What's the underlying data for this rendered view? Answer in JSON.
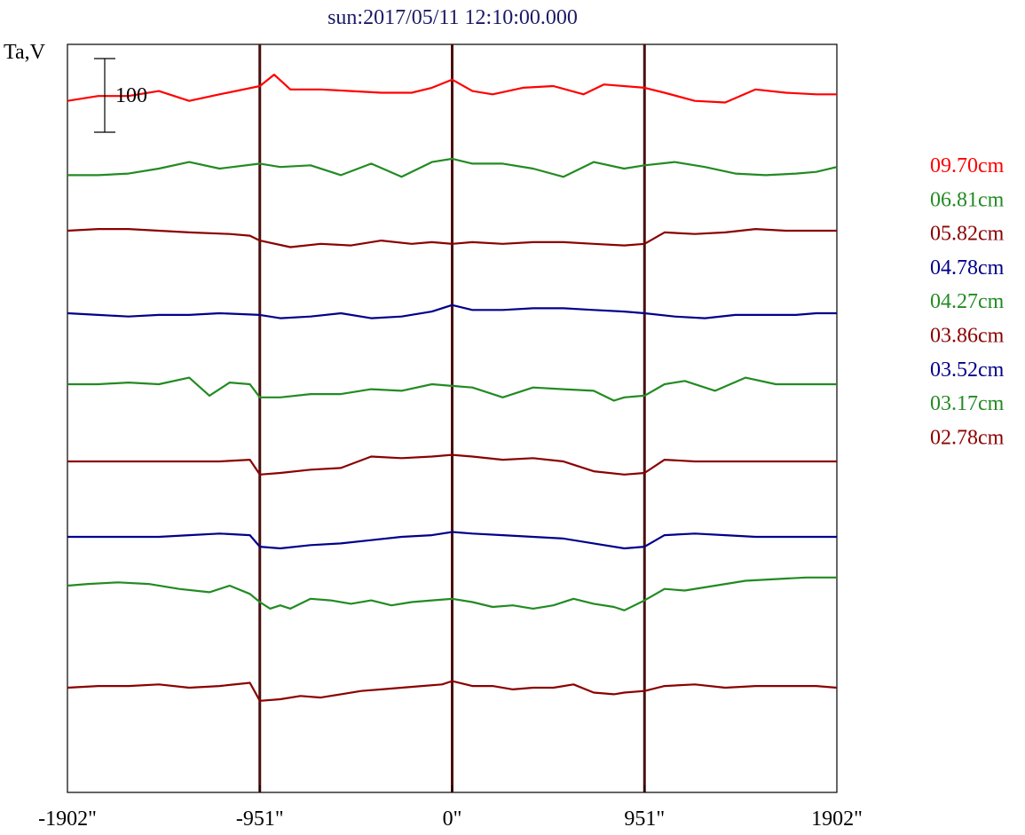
{
  "chart_data": {
    "type": "line",
    "title": "sun:2017/05/11 12:10:00.000",
    "ylabel": "Ta,V",
    "xlabel": "",
    "xlim": [
      -1902,
      1902
    ],
    "x_ticks": [
      -1902,
      -951,
      0,
      951,
      1902
    ],
    "x_tick_labels": [
      "-1902\"",
      "-951\"",
      "0\"",
      "951\"",
      "1902\""
    ],
    "vertical_markers": [
      -951,
      0,
      951
    ],
    "scale_bar": {
      "label": "100",
      "value": 100
    },
    "grid": false,
    "legend_position": "right",
    "series": [
      {
        "name": "09.70cm",
        "color": "#ff0000",
        "offset": 6.0,
        "x": [
          -1902,
          -1750,
          -1600,
          -1450,
          -1300,
          -1150,
          -951,
          -880,
          -800,
          -650,
          -500,
          -350,
          -200,
          -100,
          0,
          100,
          200,
          350,
          500,
          650,
          750,
          951,
          1050,
          1200,
          1350,
          1500,
          1650,
          1800,
          1902
        ],
        "y": [
          -10,
          5,
          5,
          20,
          -10,
          10,
          35,
          70,
          25,
          25,
          20,
          15,
          15,
          30,
          55,
          20,
          10,
          30,
          35,
          10,
          40,
          30,
          15,
          -10,
          -15,
          25,
          15,
          10,
          10
        ]
      },
      {
        "name": "06.81cm",
        "color": "#228b22",
        "offset": 6.0,
        "x": [
          -1902,
          -1750,
          -1600,
          -1450,
          -1300,
          -1150,
          -951,
          -850,
          -700,
          -550,
          -400,
          -250,
          -100,
          0,
          100,
          250,
          400,
          550,
          700,
          850,
          951,
          1100,
          1250,
          1400,
          1550,
          1700,
          1800,
          1902
        ],
        "y": [
          -20,
          -20,
          -15,
          0,
          20,
          0,
          15,
          5,
          10,
          -20,
          15,
          -25,
          20,
          30,
          15,
          15,
          0,
          -25,
          20,
          0,
          10,
          20,
          5,
          -15,
          -20,
          -15,
          -10,
          5
        ]
      },
      {
        "name": "05.82cm",
        "color": "#8b0000",
        "offset": 6.0,
        "x": [
          -1902,
          -1750,
          -1600,
          -1450,
          -1300,
          -1100,
          -1000,
          -951,
          -800,
          -650,
          -500,
          -350,
          -200,
          -100,
          0,
          100,
          250,
          400,
          550,
          700,
          851,
          951,
          1050,
          1200,
          1350,
          1500,
          1650,
          1800,
          1902
        ],
        "y": [
          0,
          5,
          5,
          0,
          -5,
          -10,
          -15,
          -30,
          -50,
          -40,
          -45,
          -30,
          -40,
          -35,
          -40,
          -35,
          -40,
          -35,
          -35,
          -40,
          -45,
          -40,
          -5,
          -10,
          -5,
          5,
          0,
          0,
          0
        ]
      },
      {
        "name": "04.78cm",
        "color": "#00008b",
        "offset": 6.0,
        "x": [
          -1902,
          -1750,
          -1600,
          -1450,
          -1300,
          -1150,
          -951,
          -850,
          -700,
          -550,
          -400,
          -250,
          -100,
          0,
          100,
          250,
          400,
          550,
          700,
          851,
          951,
          1100,
          1250,
          1400,
          1550,
          1700,
          1800,
          1902
        ],
        "y": [
          0,
          -5,
          -10,
          -5,
          -5,
          0,
          -5,
          -15,
          -10,
          0,
          -15,
          -10,
          5,
          25,
          10,
          10,
          15,
          15,
          10,
          5,
          0,
          -10,
          -15,
          -5,
          -5,
          -5,
          0,
          0
        ]
      },
      {
        "name": "04.27cm",
        "color": "#228b22",
        "offset": 6.0,
        "x": [
          -1902,
          -1750,
          -1600,
          -1450,
          -1300,
          -1200,
          -1100,
          -1000,
          -951,
          -850,
          -700,
          -550,
          -400,
          -250,
          -100,
          0,
          100,
          250,
          400,
          550,
          700,
          800,
          851,
          951,
          1050,
          1150,
          1300,
          1450,
          1600,
          1750,
          1902
        ],
        "y": [
          0,
          0,
          5,
          0,
          20,
          -35,
          5,
          0,
          -40,
          -40,
          -30,
          -30,
          -15,
          -20,
          0,
          -5,
          -10,
          -40,
          -10,
          -15,
          -20,
          -50,
          -40,
          -35,
          0,
          10,
          -20,
          20,
          0,
          0,
          0
        ]
      },
      {
        "name": "03.86cm",
        "color": "#8b0000",
        "offset": 6.0,
        "x": [
          -1902,
          -1750,
          -1600,
          -1450,
          -1300,
          -1150,
          -1000,
          -951,
          -850,
          -700,
          -550,
          -400,
          -250,
          -100,
          0,
          100,
          250,
          400,
          550,
          700,
          851,
          951,
          1050,
          1200,
          1350,
          1500,
          1650,
          1800,
          1902
        ],
        "y": [
          0,
          0,
          0,
          0,
          0,
          0,
          5,
          -40,
          -35,
          -25,
          -20,
          15,
          10,
          15,
          20,
          15,
          5,
          10,
          0,
          -30,
          -40,
          -35,
          5,
          0,
          0,
          0,
          0,
          0,
          0
        ]
      },
      {
        "name": "03.52cm",
        "color": "#00008b",
        "offset": 6.0,
        "x": [
          -1902,
          -1750,
          -1600,
          -1450,
          -1300,
          -1150,
          -1000,
          -951,
          -850,
          -700,
          -550,
          -400,
          -250,
          -100,
          0,
          100,
          250,
          400,
          550,
          700,
          851,
          951,
          1050,
          1200,
          1350,
          1500,
          1650,
          1800,
          1902
        ],
        "y": [
          0,
          0,
          0,
          0,
          5,
          10,
          5,
          -30,
          -35,
          -25,
          -20,
          -10,
          0,
          5,
          15,
          10,
          5,
          0,
          -5,
          -20,
          -35,
          -30,
          5,
          10,
          5,
          0,
          0,
          0,
          0
        ]
      },
      {
        "name": "03.17cm",
        "color": "#228b22",
        "offset": 6.0,
        "x": [
          -1902,
          -1800,
          -1650,
          -1500,
          -1350,
          -1200,
          -1100,
          -1000,
          -951,
          -900,
          -850,
          -800,
          -700,
          -600,
          -500,
          -400,
          -300,
          -200,
          -100,
          0,
          100,
          200,
          300,
          400,
          500,
          600,
          700,
          800,
          851,
          951,
          1050,
          1150,
          1300,
          1450,
          1600,
          1750,
          1902
        ],
        "y": [
          0,
          5,
          10,
          5,
          -10,
          -20,
          0,
          -25,
          -50,
          -70,
          -60,
          -70,
          -40,
          -45,
          -55,
          -45,
          -60,
          -50,
          -45,
          -40,
          -50,
          -65,
          -60,
          -70,
          -60,
          -40,
          -55,
          -65,
          -75,
          -45,
          -10,
          -15,
          0,
          15,
          20,
          25,
          25
        ]
      },
      {
        "name": "02.78cm",
        "color": "#8b0000",
        "offset": 6.0,
        "x": [
          -1902,
          -1750,
          -1600,
          -1450,
          -1300,
          -1150,
          -1000,
          -951,
          -850,
          -750,
          -650,
          -550,
          -450,
          -350,
          -250,
          -150,
          -50,
          0,
          100,
          200,
          300,
          400,
          500,
          600,
          700,
          800,
          851,
          951,
          1050,
          1200,
          1350,
          1500,
          1650,
          1800,
          1902
        ],
        "y": [
          0,
          5,
          5,
          10,
          0,
          5,
          15,
          -40,
          -35,
          -25,
          -30,
          -20,
          -10,
          -5,
          0,
          5,
          10,
          20,
          5,
          5,
          -5,
          0,
          0,
          10,
          -15,
          -20,
          -15,
          -10,
          5,
          10,
          0,
          5,
          5,
          5,
          0
        ]
      }
    ]
  }
}
